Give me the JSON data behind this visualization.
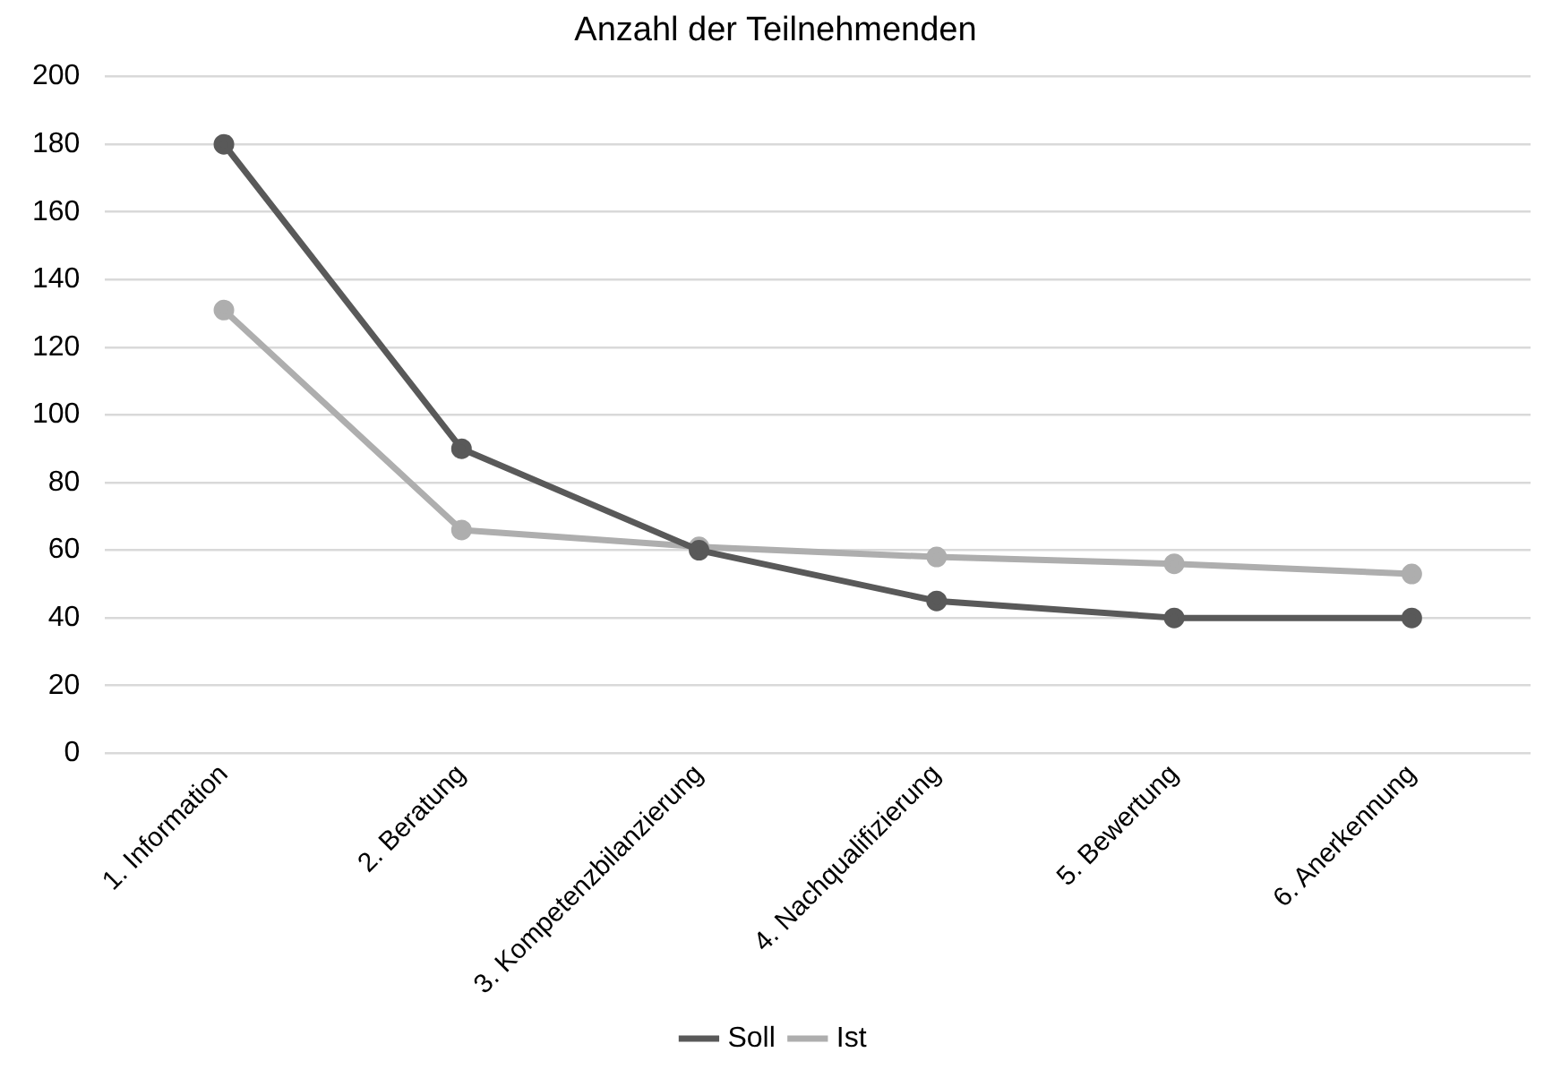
{
  "chart_data": {
    "type": "line",
    "title": "Anzahl der Teilnehmenden",
    "categories": [
      "1. Information",
      "2. Beratung",
      "3. Kompetenzbilanzierung",
      "4. Nachqualifizierung",
      "5. Bewertung",
      "6. Anerkennung"
    ],
    "series": [
      {
        "name": "Soll",
        "color": "#595959",
        "values": [
          180,
          90,
          60,
          45,
          40,
          40
        ]
      },
      {
        "name": "Ist",
        "color": "#aeaeae",
        "values": [
          131,
          66,
          61,
          58,
          56,
          53
        ]
      }
    ],
    "ylim": [
      0,
      200
    ],
    "yticks": [
      0,
      20,
      40,
      60,
      80,
      100,
      120,
      140,
      160,
      180,
      200
    ],
    "grid": "y",
    "legend": "bottom",
    "marker": "circle",
    "line_style": "solid"
  }
}
